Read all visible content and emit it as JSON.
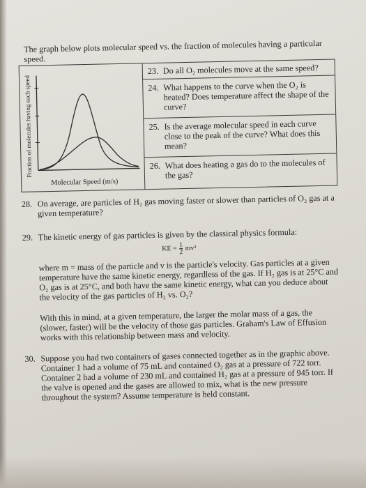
{
  "intro": {
    "text": "The graph below plots molecular speed vs. the fraction of molecules having a particular speed."
  },
  "graph": {
    "y_axis_label": "Fraction of molecules having each speed",
    "x_axis_label": "Molecular Speed (m/s)"
  },
  "box_questions": [
    {
      "number": "23.",
      "text": "Do all O₂ molecules move at the same speed?"
    },
    {
      "number": "24.",
      "text": "What happens to the curve when the O₂ is heated? Does temperature affect the shape of the curve?"
    },
    {
      "number": "25.",
      "text": "Is the average molecular speed in each curve close to the peak of the curve? What does this mean?"
    },
    {
      "number": "26.",
      "text": "What does heating a gas do to the molecules of the gas?"
    }
  ],
  "questions": [
    {
      "number": "28.",
      "text": "On average, are particles of H₂ gas moving faster or slower than particles of O₂ gas at a given temperature?"
    },
    {
      "number": "29.",
      "text": "The kinetic energy of gas particles is given by the classical physics formula:"
    },
    {
      "number": "30.",
      "text": "Suppose you had two containers of gases connected together as in the graphic above. Container 1 had a volume of 75 mL and contained O₂ gas at a pressure of 722 torr. Container 2 had a volume of 230 mL and contained H₂ gas at a pressure of 945 torr. If the valve is opened and the gases are allowed to mix, what is the new pressure throughout the system? Assume temperature is held constant."
    }
  ],
  "formula": {
    "lhs": "KE =",
    "numerator": "1",
    "denominator": "2",
    "rhs": "mv²"
  },
  "q29_para1": "where m = mass of the particle and v is the particle's velocity. Gas particles at a given temperature have the same kinetic energy, regardless of the gas. If H₂ gas is at 25°C and O₂ gas is at 25°C, and both have the same kinetic energy, what can you deduce about the velocity of the gas particles of H₂ vs. O₂?",
  "q29_para2": "With this in mind, at a given temperature, the larger the molar mass of a gas, the (slower, faster) will be the velocity of those gas particles. Graham's Law of Effusion works with this relationship between mass and velocity."
}
